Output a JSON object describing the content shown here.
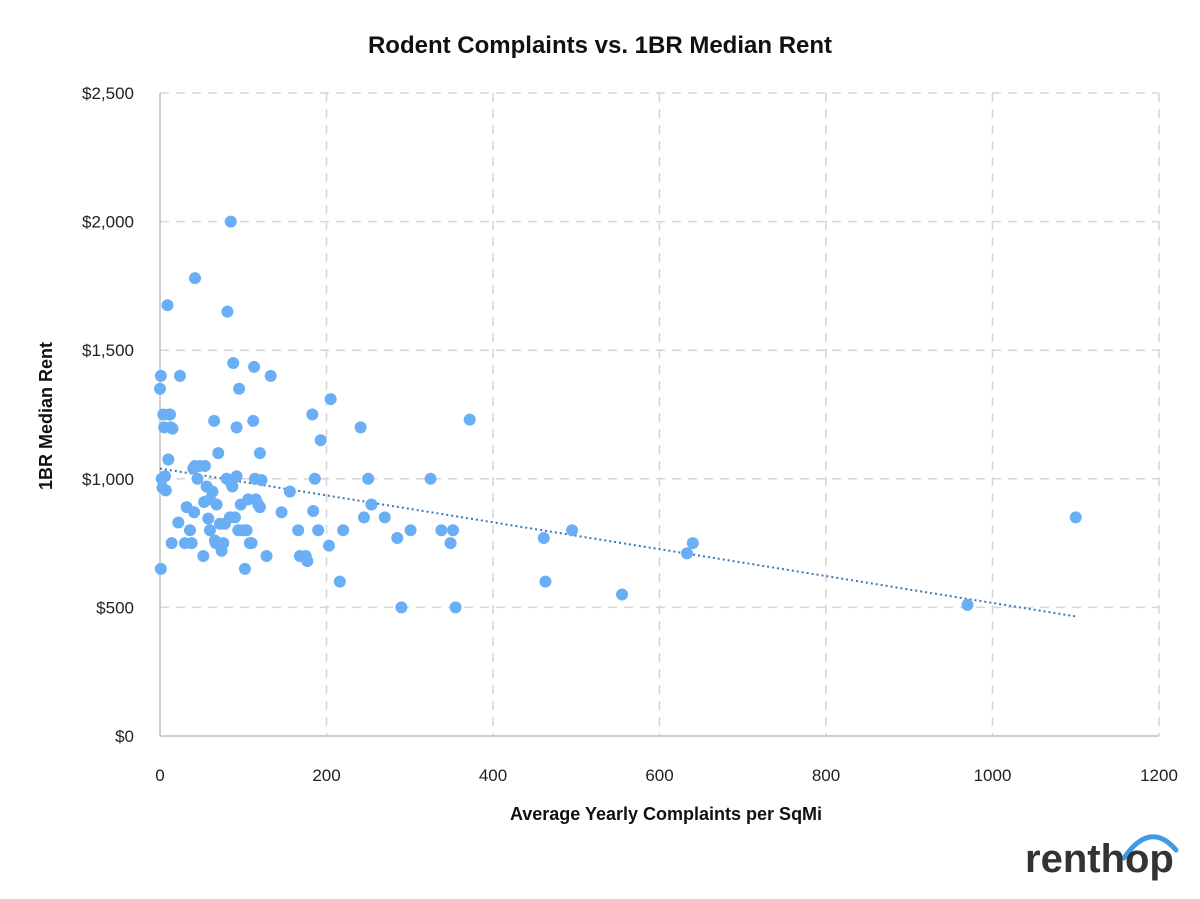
{
  "chart_data": {
    "type": "scatter",
    "title": "Rodent Complaints vs. 1BR Median Rent",
    "xlabel": "Average Yearly Complaints per SqMi",
    "ylabel": "1BR Median Rent",
    "xlim": [
      0,
      1200
    ],
    "ylim": [
      0,
      2500
    ],
    "x_ticks": [
      0,
      200,
      400,
      600,
      800,
      1000,
      1200
    ],
    "y_ticks": [
      0,
      500,
      1000,
      1500,
      2000,
      2500
    ],
    "x_tick_labels": [
      "0",
      "200",
      "400",
      "600",
      "800",
      "1000",
      "1200"
    ],
    "y_tick_labels": [
      "$0",
      "$500",
      "$1,000",
      "$1,500",
      "$2,000",
      "$2,500"
    ],
    "grid": true,
    "legend": "none",
    "point_color": "#6aaff6",
    "trendline": {
      "type": "linear",
      "color": "#3a78b8",
      "style": "dotted",
      "x": [
        0,
        1100
      ],
      "y": [
        1040,
        465
      ]
    },
    "points": [
      [
        0,
        1350
      ],
      [
        1,
        1400
      ],
      [
        1,
        650
      ],
      [
        2,
        1000
      ],
      [
        3,
        965
      ],
      [
        4,
        1250
      ],
      [
        5,
        1200
      ],
      [
        6,
        1010
      ],
      [
        7,
        955
      ],
      [
        9,
        1675
      ],
      [
        10,
        1075
      ],
      [
        11,
        1250
      ],
      [
        12,
        1250
      ],
      [
        13,
        1200
      ],
      [
        14,
        750
      ],
      [
        15,
        1195
      ],
      [
        22,
        830
      ],
      [
        24,
        1400
      ],
      [
        30,
        750
      ],
      [
        32,
        890
      ],
      [
        36,
        800
      ],
      [
        38,
        750
      ],
      [
        40,
        1040
      ],
      [
        41,
        870
      ],
      [
        42,
        1050
      ],
      [
        42,
        1780
      ],
      [
        45,
        1000
      ],
      [
        48,
        1050
      ],
      [
        52,
        700
      ],
      [
        53,
        910
      ],
      [
        54,
        1050
      ],
      [
        56,
        970
      ],
      [
        58,
        845
      ],
      [
        60,
        800
      ],
      [
        60,
        920
      ],
      [
        63,
        950
      ],
      [
        65,
        1225
      ],
      [
        66,
        760
      ],
      [
        67,
        750
      ],
      [
        68,
        900
      ],
      [
        70,
        1100
      ],
      [
        72,
        825
      ],
      [
        74,
        720
      ],
      [
        76,
        750
      ],
      [
        78,
        825
      ],
      [
        80,
        1000
      ],
      [
        81,
        1650
      ],
      [
        84,
        850
      ],
      [
        85,
        2000
      ],
      [
        86,
        980
      ],
      [
        87,
        970
      ],
      [
        88,
        1450
      ],
      [
        90,
        850
      ],
      [
        92,
        1200
      ],
      [
        92,
        1010
      ],
      [
        94,
        800
      ],
      [
        95,
        1350
      ],
      [
        97,
        900
      ],
      [
        100,
        800
      ],
      [
        102,
        650
      ],
      [
        104,
        800
      ],
      [
        106,
        920
      ],
      [
        108,
        750
      ],
      [
        110,
        750
      ],
      [
        112,
        1225
      ],
      [
        113,
        1435
      ],
      [
        114,
        1000
      ],
      [
        115,
        920
      ],
      [
        118,
        900
      ],
      [
        120,
        890
      ],
      [
        120,
        1100
      ],
      [
        122,
        995
      ],
      [
        128,
        700
      ],
      [
        133,
        1400
      ],
      [
        146,
        870
      ],
      [
        156,
        950
      ],
      [
        166,
        800
      ],
      [
        168,
        700
      ],
      [
        175,
        700
      ],
      [
        177,
        680
      ],
      [
        183,
        1250
      ],
      [
        184,
        875
      ],
      [
        186,
        1000
      ],
      [
        190,
        800
      ],
      [
        193,
        1150
      ],
      [
        203,
        740
      ],
      [
        205,
        1310
      ],
      [
        216,
        600
      ],
      [
        220,
        800
      ],
      [
        241,
        1200
      ],
      [
        245,
        850
      ],
      [
        250,
        1000
      ],
      [
        254,
        900
      ],
      [
        270,
        850
      ],
      [
        285,
        770
      ],
      [
        290,
        500
      ],
      [
        301,
        800
      ],
      [
        325,
        1000
      ],
      [
        338,
        800
      ],
      [
        349,
        750
      ],
      [
        352,
        800
      ],
      [
        355,
        500
      ],
      [
        372,
        1230
      ],
      [
        461,
        770
      ],
      [
        463,
        600
      ],
      [
        495,
        800
      ],
      [
        555,
        550
      ],
      [
        633,
        710
      ],
      [
        640,
        750
      ],
      [
        970,
        510
      ],
      [
        1100,
        850
      ]
    ]
  },
  "brand": {
    "logo_text": "renthop",
    "accent": "#3f9be8"
  }
}
